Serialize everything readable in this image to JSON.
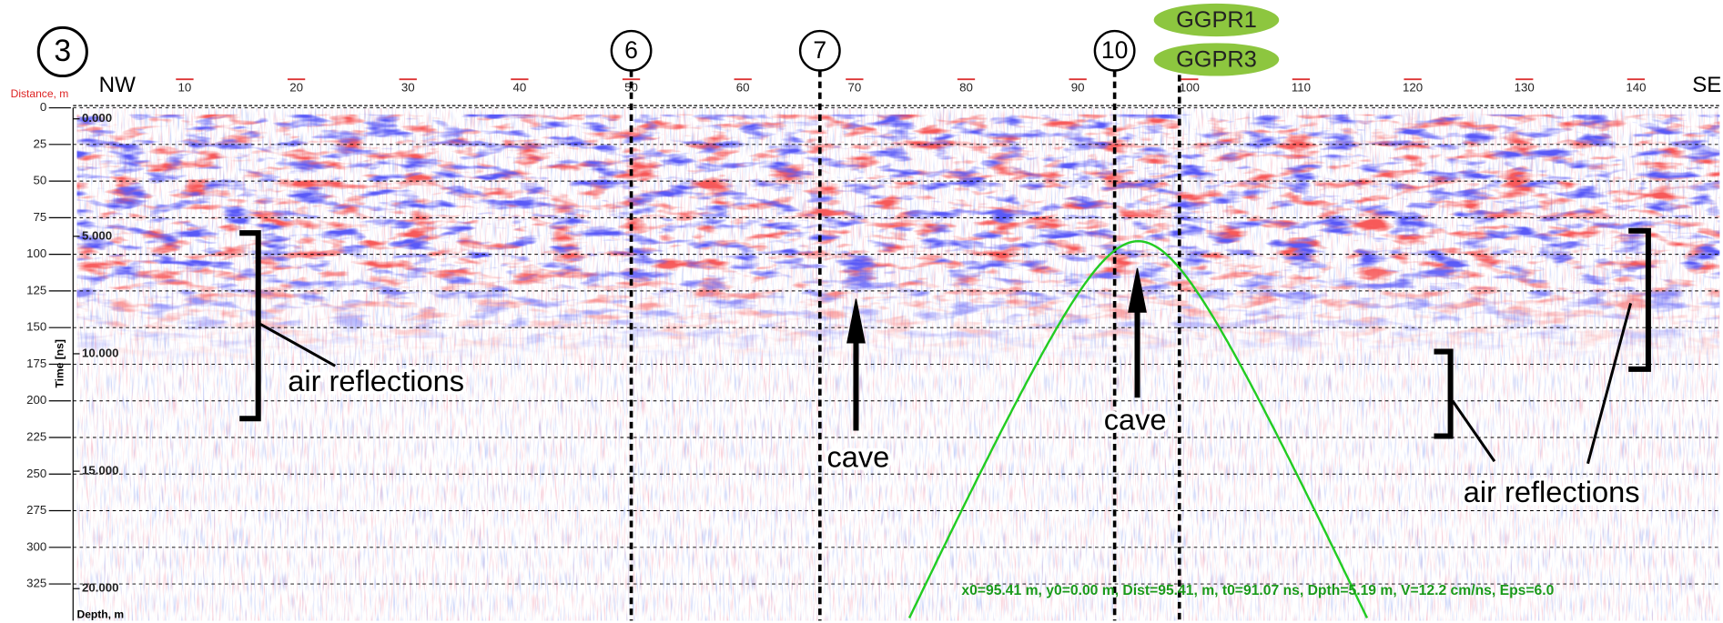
{
  "chart_data": {
    "type": "radargram",
    "profile": "3",
    "left_end": "NW",
    "right_end": "SE",
    "x_label": "Distance, m",
    "y_label": "Time [ns]",
    "y2_label": "Depth, m",
    "xlim": [
      0,
      147.5
    ],
    "xticks": [
      10,
      20,
      30,
      40,
      50,
      60,
      70,
      80,
      90,
      100,
      110,
      120,
      130,
      140
    ],
    "ylim": [
      0,
      350
    ],
    "yticks": [
      0,
      25,
      50,
      75,
      100,
      125,
      150,
      175,
      200,
      225,
      250,
      275,
      300,
      325
    ],
    "y2lim": [
      -0.47,
      21.36
    ],
    "y2ticks": [
      {
        "value": 0,
        "label": "0.000"
      },
      {
        "value": 5,
        "label": "5.000"
      },
      {
        "value": 10,
        "label": "10.000"
      },
      {
        "value": 15,
        "label": "15.000"
      },
      {
        "value": 20,
        "label": "20.000"
      }
    ],
    "grid": true,
    "markers": [
      {
        "label": "6",
        "distance": 50
      },
      {
        "label": "7",
        "distance": 66.9
      },
      {
        "label": "10",
        "distance": 93.3
      }
    ],
    "ggpr_line": {
      "labels": [
        "GGPR1",
        "GGPR3"
      ],
      "distance": 99.1,
      "color": "#8dc63f"
    },
    "annotations": [
      "air reflections",
      "cave",
      "cave",
      "air reflections"
    ],
    "hyperbola": {
      "x0": 95.41,
      "t0": 91.07,
      "v": 12.2,
      "color": "#22cc22",
      "label": "x0=95.41 m,  y0=0.00 m, Dist=95.41, m, t0=91.07 ns, Dpth=5.19 m, V=12.2 cm/ns, Eps=6.0"
    }
  }
}
